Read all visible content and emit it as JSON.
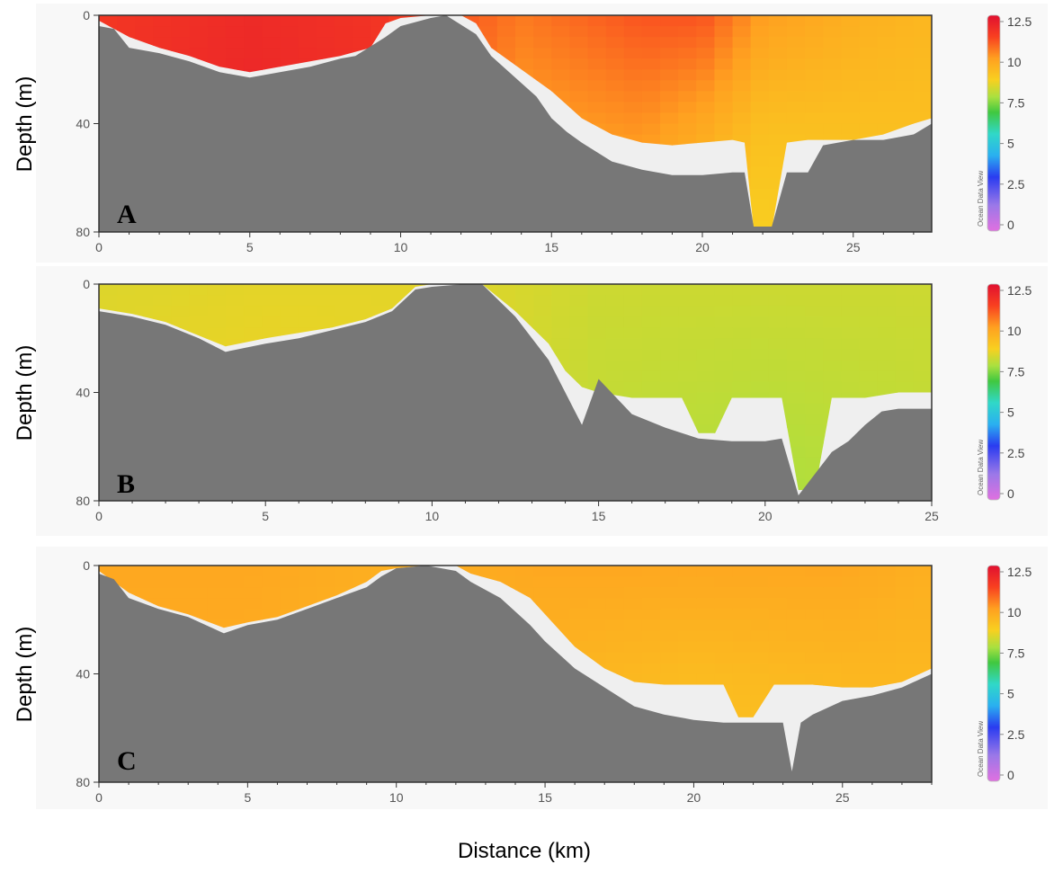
{
  "colors": {
    "bottom": "#777777",
    "nodata": "#efefef",
    "panel_bg": "#f7f7f7",
    "axis": "#333333"
  },
  "chart_data": [
    {
      "type": "heatmap",
      "panel_label": "A",
      "ylabel": "Depth (m)",
      "xlabel": "",
      "xlim": [
        0,
        27.6
      ],
      "ylim": [
        80,
        0
      ],
      "xticks": [
        "0",
        "5",
        "10",
        "15",
        "20",
        "25"
      ],
      "yticks": [
        "0",
        "40",
        "80"
      ],
      "colorbar": {
        "ticks": [
          "12.5",
          "10",
          "7.5",
          "5",
          "2.5",
          "0"
        ],
        "credit": "Ocean Data View",
        "range": [
          0,
          12.5
        ]
      },
      "bathymetry": {
        "x": [
          0,
          0.5,
          1,
          2,
          3,
          4,
          5,
          6,
          7,
          8,
          8.5,
          9.5,
          10,
          11,
          11.5,
          12.5,
          13,
          14,
          14.5,
          15,
          15.5,
          16,
          17,
          18,
          19,
          20,
          21,
          21.4,
          21.7,
          22.3,
          22.8,
          23.5,
          24,
          25,
          26,
          27,
          27.6
        ],
        "depth": [
          4,
          5,
          12,
          14,
          17,
          21,
          23,
          21,
          19,
          16,
          15,
          8,
          4,
          1,
          0,
          7,
          15,
          25,
          30,
          38,
          43,
          47,
          54,
          57,
          59,
          59,
          58,
          58,
          78,
          78,
          58,
          58,
          48,
          46,
          46,
          44,
          40
        ]
      },
      "water_bottom": {
        "x": [
          0,
          1,
          2,
          3,
          4,
          5,
          6,
          7,
          8,
          9,
          9.5,
          10,
          11,
          12,
          12.5,
          13,
          14,
          15,
          16,
          17,
          18,
          19,
          20,
          21,
          21.4,
          21.7,
          22.3,
          22.8,
          23.5,
          24,
          25,
          26,
          27,
          27.6
        ],
        "depth": [
          2,
          8,
          12,
          15,
          19,
          21,
          19,
          17,
          15,
          12,
          3,
          1,
          0,
          0,
          3,
          12,
          20,
          28,
          38,
          44,
          47,
          48,
          47,
          46,
          47,
          79,
          79,
          47,
          46,
          46,
          46,
          44,
          40,
          38
        ]
      },
      "profiles": [
        {
          "x": 0,
          "temp": [
            11.5,
            11.6,
            11.7
          ]
        },
        {
          "x": 5,
          "temp": [
            11.8,
            11.9,
            12.0
          ]
        },
        {
          "x": 9,
          "temp": [
            11.6,
            11.7,
            11.8
          ]
        },
        {
          "x": 14,
          "temp": [
            10.5,
            10.0,
            9.6
          ]
        },
        {
          "x": 18,
          "temp": [
            11.0,
            10.2,
            9.5
          ]
        },
        {
          "x": 20,
          "temp": [
            11.0,
            9.8,
            9.0
          ]
        },
        {
          "x": 22,
          "temp": [
            10.0,
            9.2,
            8.8
          ]
        },
        {
          "x": 25,
          "temp": [
            9.6,
            9.2,
            9.0
          ]
        },
        {
          "x": 27.6,
          "temp": [
            9.4,
            9.2,
            9.0
          ]
        }
      ]
    },
    {
      "type": "heatmap",
      "panel_label": "B",
      "ylabel": "Depth (m)",
      "xlabel": "",
      "xlim": [
        0,
        25
      ],
      "ylim": [
        80,
        0
      ],
      "xticks": [
        "0",
        "5",
        "10",
        "15",
        "20",
        "25"
      ],
      "yticks": [
        "0",
        "40",
        "80"
      ],
      "colorbar": {
        "ticks": [
          "12.5",
          "10",
          "7.5",
          "5",
          "2.5",
          "0"
        ],
        "credit": "Ocean Data View",
        "range": [
          0,
          12.5
        ]
      },
      "bathymetry": {
        "x": [
          0,
          1,
          2,
          3,
          3.8,
          5,
          6,
          7,
          8,
          8.8,
          9.5,
          10,
          11,
          11.5,
          12.5,
          13.5,
          14,
          14.5,
          15,
          16,
          17,
          18,
          19,
          20,
          20.5,
          21,
          21.5,
          22,
          22.5,
          23,
          23.5,
          24,
          25
        ],
        "depth": [
          10,
          12,
          15,
          20,
          25,
          22,
          20,
          17,
          14,
          10,
          2,
          1,
          0,
          0,
          12,
          28,
          40,
          52,
          35,
          48,
          53,
          57,
          58,
          58,
          57,
          78,
          70,
          62,
          58,
          52,
          47,
          46,
          46
        ]
      },
      "water_bottom": {
        "x": [
          0,
          1,
          2,
          3,
          3.8,
          5,
          6,
          7,
          8,
          8.8,
          9.5,
          10,
          11,
          11.5,
          12.5,
          13.5,
          14,
          14.5,
          15,
          16,
          17,
          17.5,
          18,
          18.5,
          19,
          20,
          20.5,
          21,
          21.5,
          22,
          22.5,
          23,
          24,
          25
        ],
        "depth": [
          9,
          11,
          14,
          19,
          23,
          20,
          18,
          16,
          13,
          9,
          1,
          0,
          0,
          0,
          10,
          22,
          32,
          38,
          40,
          42,
          42,
          42,
          55,
          55,
          42,
          42,
          42,
          76,
          76,
          42,
          42,
          42,
          40,
          40
        ]
      },
      "profiles": [
        {
          "x": 0,
          "temp": [
            8.4,
            8.5,
            8.6
          ]
        },
        {
          "x": 5,
          "temp": [
            8.5,
            8.6,
            8.6
          ]
        },
        {
          "x": 10,
          "temp": [
            8.5,
            8.5,
            8.5
          ]
        },
        {
          "x": 15,
          "temp": [
            8.2,
            8.1,
            8.0
          ]
        },
        {
          "x": 20,
          "temp": [
            8.2,
            8.0,
            7.8
          ]
        },
        {
          "x": 25,
          "temp": [
            8.2,
            8.1,
            8.0
          ]
        }
      ]
    },
    {
      "type": "heatmap",
      "panel_label": "C",
      "ylabel": "Depth (m)",
      "xlabel": "Distance (km)",
      "xlim": [
        0,
        28
      ],
      "ylim": [
        80,
        0
      ],
      "xticks": [
        "0",
        "5",
        "10",
        "15",
        "20",
        "25"
      ],
      "yticks": [
        "0",
        "40",
        "80"
      ],
      "colorbar": {
        "ticks": [
          "12.5",
          "10",
          "7.5",
          "5",
          "2.5",
          "0"
        ],
        "credit": "Ocean Data View",
        "range": [
          0,
          12.5
        ]
      },
      "bathymetry": {
        "x": [
          0,
          0.5,
          1,
          2,
          3,
          4.2,
          5,
          6,
          7,
          8,
          9,
          9.5,
          10,
          11,
          12,
          12.5,
          13.5,
          14.5,
          15,
          16,
          17,
          18,
          19,
          20,
          21,
          22,
          23,
          23.3,
          23.6,
          24,
          25,
          26,
          27,
          28
        ],
        "depth": [
          3,
          5,
          12,
          16,
          19,
          25,
          22,
          20,
          16,
          12,
          8,
          4,
          1,
          0,
          2,
          6,
          12,
          22,
          28,
          38,
          45,
          52,
          55,
          57,
          58,
          58,
          58,
          76,
          58,
          55,
          50,
          48,
          45,
          40
        ]
      },
      "water_bottom": {
        "x": [
          0,
          1,
          2,
          3,
          4.2,
          5,
          6,
          7,
          8,
          9,
          9.5,
          10,
          11,
          12,
          12.5,
          13.5,
          14.5,
          15,
          16,
          17,
          18,
          19,
          20,
          21,
          21.5,
          22,
          22.7,
          23,
          24,
          25,
          26,
          27,
          28
        ],
        "depth": [
          2,
          10,
          15,
          18,
          23,
          21,
          19,
          15,
          11,
          6,
          2,
          1,
          0,
          0,
          3,
          6,
          12,
          18,
          30,
          38,
          43,
          44,
          44,
          44,
          56,
          56,
          44,
          44,
          44,
          45,
          45,
          43,
          38
        ]
      },
      "profiles": [
        {
          "x": 0,
          "temp": [
            9.8,
            9.7,
            9.6
          ]
        },
        {
          "x": 5,
          "temp": [
            9.8,
            9.7,
            9.6
          ]
        },
        {
          "x": 10,
          "temp": [
            9.6,
            9.5,
            9.4
          ]
        },
        {
          "x": 15,
          "temp": [
            9.8,
            9.5,
            9.2
          ]
        },
        {
          "x": 20,
          "temp": [
            9.8,
            9.3,
            9.0
          ]
        },
        {
          "x": 25,
          "temp": [
            9.8,
            9.4,
            9.2
          ]
        },
        {
          "x": 28,
          "temp": [
            9.6,
            9.4,
            9.2
          ]
        }
      ]
    }
  ]
}
